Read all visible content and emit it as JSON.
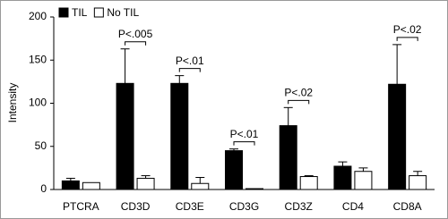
{
  "chart_data": {
    "type": "bar",
    "y_label": "Intensity",
    "categories": [
      "PTCRA",
      "CD3D",
      "CD3E",
      "CD3G",
      "CD3Z",
      "CD4",
      "CD8A"
    ],
    "series": [
      {
        "name": "TIL",
        "color": "#000000",
        "values": [
          10,
          123,
          123,
          45,
          74,
          27,
          122
        ],
        "errors": [
          3,
          40,
          9,
          2,
          21,
          5,
          46
        ]
      },
      {
        "name": "No TIL",
        "color": "#ffffff",
        "values": [
          8,
          13,
          7,
          1,
          15,
          21,
          16
        ],
        "errors": [
          0,
          3,
          7,
          0,
          1,
          4,
          5
        ]
      }
    ],
    "ylim": [
      0,
      200
    ],
    "yticks": [
      0,
      50,
      100,
      150,
      200
    ],
    "legend": "top-left",
    "annotations": [
      {
        "label": "P<.005",
        "category": "CD3D"
      },
      {
        "label": "P<.01",
        "category": "CD3E"
      },
      {
        "label": "P<.01",
        "category": "CD3G"
      },
      {
        "label": "P<.02",
        "category": "CD3Z"
      },
      {
        "label": "P<.02",
        "category": "CD8A"
      }
    ]
  }
}
